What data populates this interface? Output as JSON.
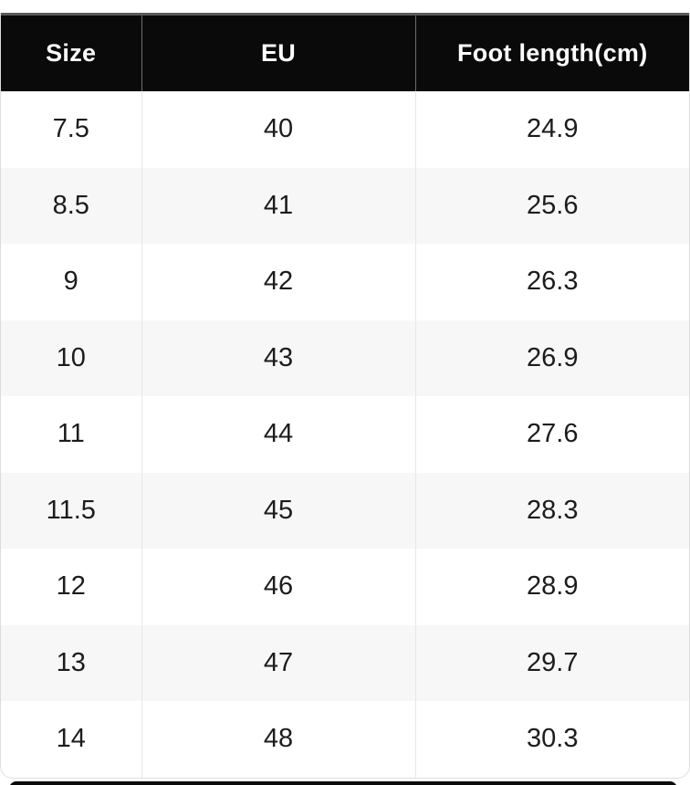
{
  "chart_data": {
    "type": "table",
    "columns": [
      "Size",
      "EU",
      "Foot length(cm)"
    ],
    "rows": [
      [
        "7.5",
        "40",
        "24.9"
      ],
      [
        "8.5",
        "41",
        "25.6"
      ],
      [
        "9",
        "42",
        "26.3"
      ],
      [
        "10",
        "43",
        "26.9"
      ],
      [
        "11",
        "44",
        "27.6"
      ],
      [
        "11.5",
        "45",
        "28.3"
      ],
      [
        "12",
        "46",
        "28.9"
      ],
      [
        "13",
        "47",
        "29.7"
      ],
      [
        "14",
        "48",
        "30.3"
      ]
    ],
    "layout_hints": {
      "header_position": "top",
      "zebra_striping": true,
      "striped_row_indices": [
        1,
        3,
        5,
        7
      ]
    }
  },
  "colors": {
    "header_bg": "#0a0a0a",
    "header_text": "#ffffff",
    "header_top_border": "#5a5a5a",
    "header_divider": "#6f6f6f",
    "body_divider": "#e7e7e7",
    "row_bg": "#ffffff",
    "row_alt_bg": "#f7f7f7",
    "body_text": "#1c1c1c",
    "card_border": "#dcdcdc"
  }
}
